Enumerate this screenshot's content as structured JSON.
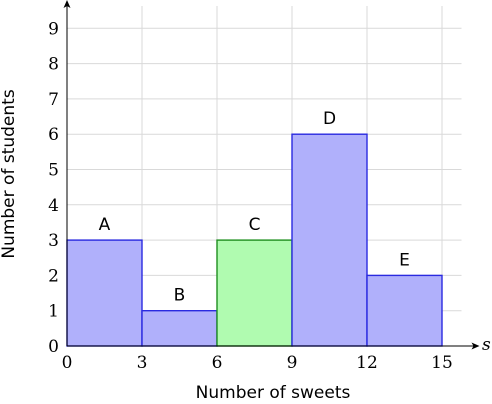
{
  "chart_data": {
    "type": "bar",
    "bins": [
      {
        "label": "A",
        "from": 0,
        "to": 3,
        "value": 3
      },
      {
        "label": "B",
        "from": 3,
        "to": 6,
        "value": 1
      },
      {
        "label": "C",
        "from": 6,
        "to": 9,
        "value": 3
      },
      {
        "label": "D",
        "from": 9,
        "to": 12,
        "value": 6
      },
      {
        "label": "E",
        "from": 12,
        "to": 15,
        "value": 2
      }
    ],
    "highlight_bin": "C",
    "xlabel": "Number of sweets",
    "ylabel": "Number of students",
    "x_axis_variable": "s",
    "xticks": [
      0,
      3,
      6,
      9,
      12,
      15
    ],
    "yticks": [
      0,
      1,
      2,
      3,
      4,
      5,
      6,
      7,
      8,
      9
    ],
    "xlim": [
      0,
      16.5
    ],
    "ylim": [
      0,
      9.8
    ],
    "grid": true,
    "colors": {
      "bar_fill": "#b0b0fb",
      "bar_stroke": "#2a2ae0",
      "highlight_fill": "#b0fbb0",
      "highlight_stroke": "#1f8f1f",
      "grid": "#d9d9d9"
    }
  }
}
